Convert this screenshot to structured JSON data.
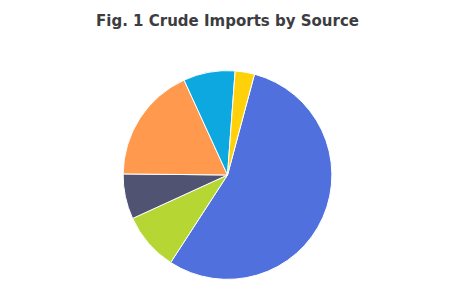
{
  "chart_data": {
    "type": "pie",
    "title": "Fig. 1 Crude Imports by Source",
    "values": [
      55,
      9,
      7,
      18,
      8,
      3
    ]
  }
}
